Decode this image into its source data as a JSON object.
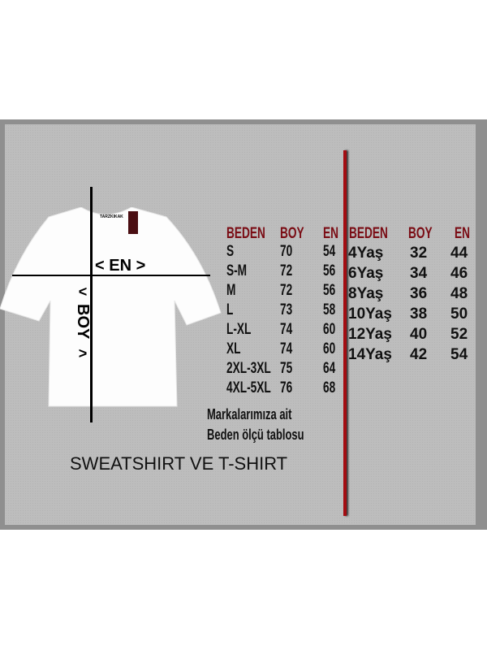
{
  "diagram": {
    "width_label": "< EN >",
    "length_label": "BOY",
    "tag_text": "TARZKIKAK"
  },
  "adult_table": {
    "headers": [
      "BEDEN",
      "BOY",
      "EN"
    ],
    "rows": [
      [
        "S",
        "70",
        "54"
      ],
      [
        "S-M",
        "72",
        "56"
      ],
      [
        "M",
        "72",
        "56"
      ],
      [
        "L",
        "73",
        "58"
      ],
      [
        "L-XL",
        "74",
        "60"
      ],
      [
        "XL",
        "74",
        "60"
      ],
      [
        "2XL-3XL",
        "75",
        "64"
      ],
      [
        "4XL-5XL",
        "76",
        "68"
      ]
    ]
  },
  "kids_table": {
    "headers": [
      "BEDEN",
      "BOY",
      "EN"
    ],
    "rows": [
      [
        "4Yaş",
        "32",
        "44"
      ],
      [
        "6Yaş",
        "34",
        "46"
      ],
      [
        "8Yaş",
        "36",
        "48"
      ],
      [
        "10Yaş",
        "38",
        "50"
      ],
      [
        "12Yaş",
        "40",
        "52"
      ],
      [
        "14Yaş",
        "42",
        "54"
      ]
    ]
  },
  "note": {
    "line1": "Markalarımıza ait",
    "line2": "Beden ölçü tablosu"
  },
  "product_type": "SWEATSHIRT VE T-SHIRT",
  "colors": {
    "header": "#7a0c14",
    "divider": "#a30d12",
    "background": "#bdbdbd"
  }
}
